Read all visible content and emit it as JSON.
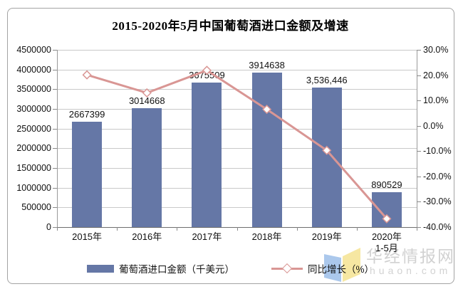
{
  "title": "2015-2020年5月中国葡萄酒进口金额及增速",
  "watermark": {
    "text": "华经情报网",
    "domain": "huaon.com"
  },
  "colors": {
    "bar": "#6577a6",
    "line": "#d99694",
    "grid": "#c9c9c9",
    "logo_blue": "#abc8ec",
    "logo_yellow": "#f6e7a2"
  },
  "chart_data": {
    "type": "bar",
    "combo": "bar+line, dual axis",
    "title": "2015-2020年5月中国葡萄酒进口金额及增速",
    "categories": [
      "2015年",
      "2016年",
      "2017年",
      "2018年",
      "2019年",
      "2020年"
    ],
    "category_sublabels": [
      "",
      "",
      "",
      "",
      "",
      "1-5月"
    ],
    "series": [
      {
        "name": "葡萄酒进口金额（千美元）",
        "type": "bar",
        "axis": "left",
        "color": "#6577a6",
        "values": [
          2667399,
          3014668,
          3675509,
          3914638,
          3536446,
          890529
        ],
        "data_labels": [
          "2667399",
          "3014668",
          "3675509",
          "3914638",
          "3,536,446",
          "890529"
        ]
      },
      {
        "name": "同比增长（%）",
        "type": "line",
        "axis": "right",
        "color": "#d99694",
        "marker": "white-diamond",
        "values": [
          20.1,
          13.0,
          21.9,
          6.5,
          -9.7,
          -36.7
        ]
      }
    ],
    "left_axis": {
      "min": 0,
      "max": 4500000,
      "step": 500000,
      "labels": [
        "0",
        "500000",
        "1000000",
        "1500000",
        "2000000",
        "2500000",
        "3000000",
        "3500000",
        "4000000",
        "4500000"
      ]
    },
    "right_axis": {
      "min": -40,
      "max": 30,
      "step": 10,
      "labels": [
        "30.0%",
        "20.0%",
        "10.0%",
        "0.0%",
        "-10.0%",
        "-20.0%",
        "-30.0%",
        "-40.0%"
      ]
    },
    "grid": "horizontal gridlines aligned to left axis",
    "legend_position": "bottom"
  }
}
